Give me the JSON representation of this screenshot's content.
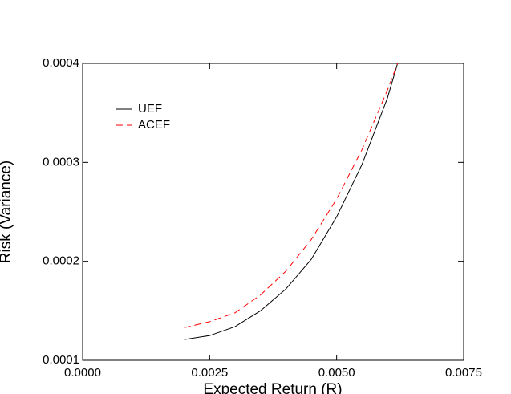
{
  "chart_data": {
    "type": "line",
    "x_label": "Expected Return (R)",
    "y_label": "Risk (Variance)",
    "x": [
      0.002,
      0.0025,
      0.003,
      0.0035,
      0.004,
      0.0045,
      0.005,
      0.0055,
      0.006,
      0.0062
    ],
    "series": [
      {
        "name": "UEF",
        "color": "#000000",
        "dash": "none",
        "values": [
          0.000121,
          0.000125,
          0.000134,
          0.00015,
          0.000172,
          0.000202,
          0.000245,
          0.000298,
          0.000365,
          0.0004
        ]
      },
      {
        "name": "ACEF",
        "color": "#ff0000",
        "dash": "8,5",
        "values": [
          0.000133,
          0.000139,
          0.000148,
          0.000166,
          0.00019,
          0.000222,
          0.000263,
          0.000313,
          0.000373,
          0.0004
        ]
      }
    ],
    "xlim": [
      0,
      0.0075
    ],
    "ylim": [
      0.0001,
      0.0004
    ],
    "xticks": [
      {
        "value": 0,
        "label": "0.0000"
      },
      {
        "value": 0.0025,
        "label": "0.0025"
      },
      {
        "value": 0.005,
        "label": "0.0050"
      },
      {
        "value": 0.0075,
        "label": "0.0075"
      }
    ],
    "yticks": [
      0.0001,
      0.0002,
      0.0003,
      0.0004
    ],
    "legend": "upper-left"
  }
}
